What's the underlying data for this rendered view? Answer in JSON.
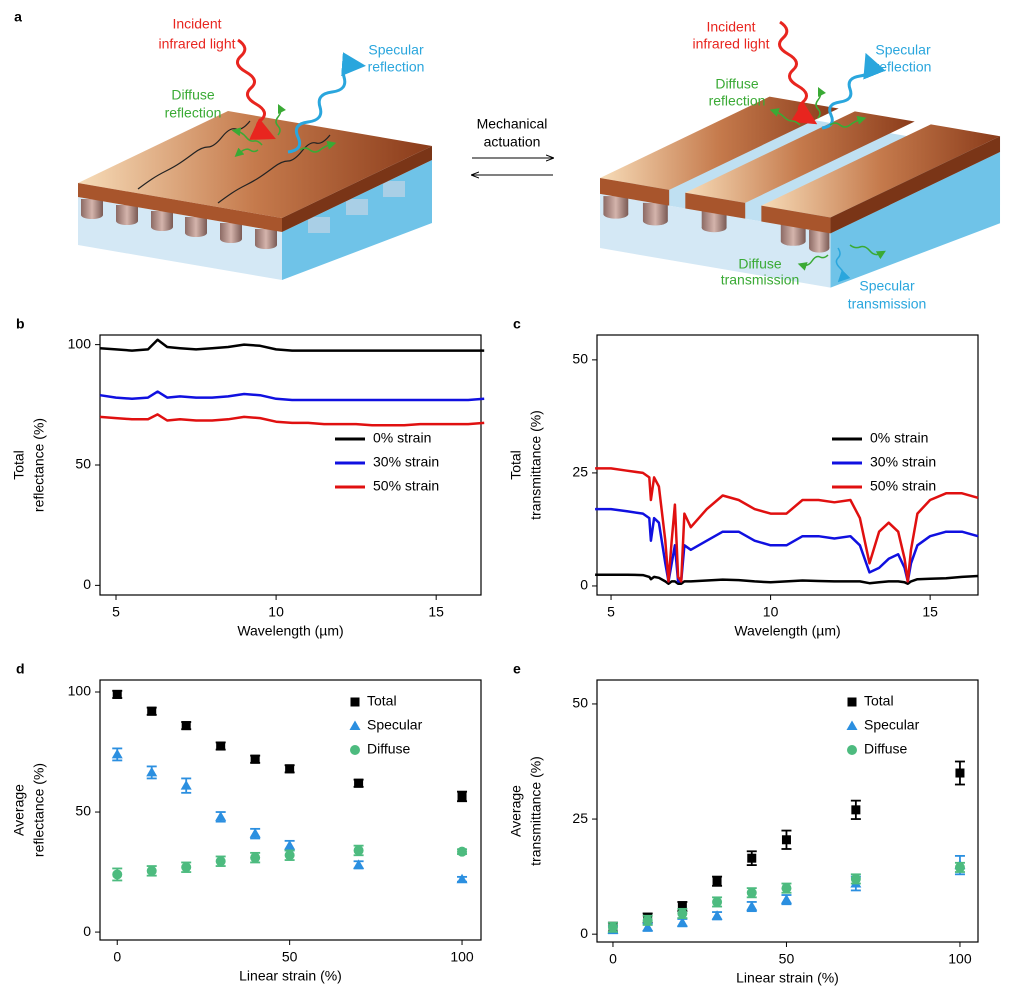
{
  "diagram": {
    "label": "a",
    "incident_left": [
      "Incident",
      "infrared light"
    ],
    "specular_reflection_left": [
      "Specular",
      "reflection"
    ],
    "diffuse_reflection_left": [
      "Diffuse",
      "reflection"
    ],
    "actuation": [
      "Mechanical",
      "actuation"
    ],
    "incident_right": [
      "Incident",
      "infrared light"
    ],
    "specular_reflection_right": [
      "Specular",
      "reflection"
    ],
    "diffuse_reflection_right": [
      "Diffuse",
      "reflection"
    ],
    "diffuse_transmission": [
      "Diffuse",
      "transmission"
    ],
    "specular_transmission": [
      "Specular",
      "transmission"
    ]
  },
  "chart_data": [
    {
      "type": "line",
      "label": "b",
      "ylabel": [
        "Total",
        "reflectance (%)"
      ],
      "xlabel": "Wavelength (µm)",
      "xlim": [
        4.5,
        16.4
      ],
      "ylim": [
        -4,
        104
      ],
      "xticks": [
        5,
        10,
        15
      ],
      "yticks": [
        0,
        50,
        100
      ],
      "legend": "center right",
      "x": [
        4.5,
        5,
        5.5,
        6,
        6.3,
        6.6,
        7,
        7.5,
        8,
        8.5,
        9,
        9.5,
        10,
        10.5,
        11,
        11.5,
        12,
        12.5,
        13,
        13.5,
        14,
        14.5,
        15,
        15.5,
        16,
        16.5
      ],
      "series": [
        {
          "name": "0% strain",
          "color": "#000000",
          "values": [
            98.5,
            98,
            97.5,
            98,
            102,
            99,
            98.5,
            98,
            98.5,
            99,
            100,
            99.5,
            98,
            97.5,
            97.5,
            97.5,
            97.5,
            97.5,
            97.5,
            97.5,
            97.5,
            97.5,
            97.5,
            97.5,
            97.5,
            97.5
          ]
        },
        {
          "name": "30% strain",
          "color": "#1010e0",
          "values": [
            79,
            78,
            77.5,
            78,
            80.5,
            78,
            78.5,
            78,
            78,
            78.5,
            79.5,
            79,
            77.5,
            77,
            77,
            77,
            77,
            77,
            77,
            77,
            77,
            77,
            77,
            77,
            77,
            77.5
          ]
        },
        {
          "name": "50% strain",
          "color": "#e01010",
          "values": [
            70,
            69.5,
            69,
            69,
            71,
            68.5,
            69,
            68.5,
            68.5,
            69,
            70,
            69.5,
            68,
            67.5,
            67.5,
            67,
            67,
            67,
            66.5,
            66.5,
            66.5,
            67,
            67,
            67,
            67,
            67.5
          ]
        }
      ]
    },
    {
      "type": "line",
      "label": "c",
      "ylabel": [
        "Total",
        "transmittance (%)"
      ],
      "xlabel": "Wavelength (µm)",
      "xlim": [
        4.56,
        16.5
      ],
      "ylim": [
        -2,
        55.5
      ],
      "xticks": [
        5,
        10,
        15
      ],
      "yticks": [
        0,
        25,
        50
      ],
      "legend": "center right",
      "x": [
        4.5,
        5,
        5.5,
        6,
        6.2,
        6.25,
        6.35,
        6.5,
        6.7,
        6.8,
        6.9,
        7.0,
        7.1,
        7.2,
        7.3,
        7.5,
        8,
        8.5,
        9,
        9.5,
        10,
        10.5,
        11,
        11.5,
        12,
        12.5,
        12.8,
        13.1,
        13.4,
        13.7,
        14,
        14.2,
        14.3,
        14.4,
        14.6,
        15,
        15.5,
        16,
        16.5
      ],
      "series": [
        {
          "name": "0% strain",
          "color": "#000000",
          "values": [
            2.5,
            2.5,
            2.5,
            2.4,
            2,
            1.5,
            2,
            1.8,
            1,
            0.5,
            1,
            1,
            0.5,
            0.5,
            1,
            1,
            1.2,
            1.4,
            1.3,
            1,
            0.8,
            1,
            1.2,
            1.1,
            1,
            1,
            1,
            0.6,
            0.8,
            1,
            1,
            0.8,
            0.5,
            1,
            1.5,
            1.6,
            1.7,
            2,
            2.2
          ]
        },
        {
          "name": "30% strain",
          "color": "#1010e0",
          "values": [
            17,
            17,
            16.5,
            16,
            15,
            10,
            15,
            14,
            5,
            1,
            5,
            9,
            1,
            1,
            9,
            8,
            10,
            12,
            12,
            10,
            9,
            9,
            11,
            11,
            10.5,
            11,
            9,
            3,
            4,
            6,
            7,
            4,
            1,
            5,
            9,
            11,
            12,
            12,
            11
          ]
        },
        {
          "name": "50% strain",
          "color": "#e01010",
          "values": [
            26,
            26,
            25.5,
            25,
            24,
            19,
            24,
            22,
            10,
            1,
            10,
            18,
            2,
            1,
            16,
            13,
            17,
            20,
            19,
            17,
            16,
            16,
            19,
            19,
            18.5,
            19,
            15,
            5,
            12,
            14,
            12,
            6,
            1,
            8,
            16,
            19,
            20.5,
            20.5,
            19.5
          ]
        }
      ]
    },
    {
      "type": "scatter",
      "label": "d",
      "ylabel": [
        "Average",
        "reflectance (%)"
      ],
      "xlabel": "Linear strain (%)",
      "xlim": [
        -5,
        105.5
      ],
      "ylim": [
        -3.3,
        105
      ],
      "xticks": [
        0,
        50,
        100
      ],
      "yticks": [
        0,
        50,
        100
      ],
      "legend": "upper right",
      "x": [
        0,
        10,
        20,
        30,
        40,
        50,
        70,
        100
      ],
      "series": [
        {
          "name": "Total",
          "color": "#000000",
          "marker": "square",
          "values": [
            99,
            92,
            86,
            77.5,
            72,
            68,
            62,
            56.5
          ],
          "errors": [
            1.5,
            1.5,
            1.5,
            1.5,
            1.5,
            1.5,
            1.5,
            2
          ]
        },
        {
          "name": "Specular",
          "color": "#2b8fe0",
          "marker": "triangle",
          "values": [
            74,
            66.5,
            61,
            48,
            41,
            36,
            28,
            22
          ],
          "errors": [
            2.5,
            2.5,
            3,
            2,
            2,
            2,
            1.5,
            1
          ]
        },
        {
          "name": "Diffuse",
          "color": "#4dbb7f",
          "marker": "circle",
          "values": [
            24,
            25.5,
            27,
            29.5,
            31,
            32,
            34,
            33.5
          ],
          "errors": [
            2.5,
            2,
            2,
            2,
            2,
            2,
            2,
            1
          ]
        }
      ]
    },
    {
      "type": "scatter",
      "label": "e",
      "ylabel": [
        "Average",
        "transmittance (%)"
      ],
      "xlabel": "Linear strain (%)",
      "xlim": [
        -4.6,
        105.2
      ],
      "ylim": [
        -1.7,
        55.2
      ],
      "xticks": [
        0,
        50,
        100
      ],
      "yticks": [
        0,
        25,
        50
      ],
      "legend": "upper right",
      "x": [
        0,
        10,
        20,
        30,
        40,
        50,
        70,
        100
      ],
      "series": [
        {
          "name": "Total",
          "color": "#000000",
          "marker": "square",
          "values": [
            1.5,
            3.5,
            6,
            11.5,
            16.5,
            20.5,
            27,
            35
          ],
          "errors": [
            1,
            1,
            1,
            1,
            1.5,
            2,
            2,
            2.5
          ]
        },
        {
          "name": "Specular",
          "color": "#2b8fe0",
          "marker": "triangle",
          "values": [
            1,
            1.5,
            2.5,
            4,
            6,
            7.5,
            11,
            15
          ],
          "errors": [
            0.8,
            0.8,
            0.8,
            0.8,
            1,
            1,
            1.5,
            2
          ]
        },
        {
          "name": "Diffuse",
          "color": "#4dbb7f",
          "marker": "circle",
          "values": [
            1.5,
            3,
            4.5,
            7,
            9,
            10,
            12,
            14.5
          ],
          "errors": [
            1,
            1,
            1,
            1,
            1,
            1,
            1,
            1
          ]
        }
      ]
    }
  ]
}
